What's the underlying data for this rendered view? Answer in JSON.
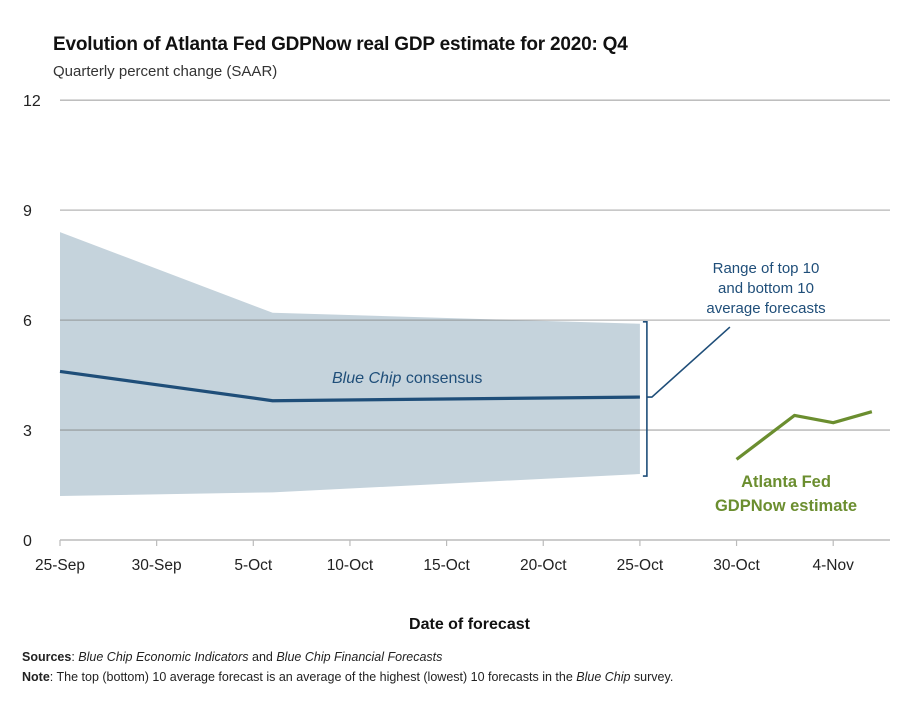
{
  "chart_data": {
    "type": "line",
    "title": "Evolution of Atlanta Fed GDPNow real GDP estimate for 2020: Q4",
    "subtitle": "Quarterly percent change (SAAR)",
    "xlabel": "Date of forecast",
    "ylabel": "",
    "ylim": [
      0,
      12
    ],
    "yticks": [
      0,
      3,
      6,
      9,
      12
    ],
    "ytick_labels": [
      "0",
      "3",
      "6",
      "9",
      "12"
    ],
    "xlim_days": [
      0,
      43
    ],
    "x_origin": "25-Sep",
    "xticks_days": [
      0,
      5,
      10,
      15,
      20,
      25,
      30,
      35,
      40
    ],
    "xtick_labels": [
      "25-Sep",
      "30-Sep",
      "5-Oct",
      "10-Oct",
      "15-Oct",
      "20-Oct",
      "25-Oct",
      "30-Oct",
      "4-Nov"
    ],
    "grid": true,
    "series": [
      {
        "name": "Blue Chip consensus",
        "type": "line",
        "color": "#1f4e79",
        "x_days": [
          0,
          11,
          30
        ],
        "x_labels": [
          "25-Sep",
          "6-Oct",
          "25-Oct"
        ],
        "values": [
          4.6,
          3.8,
          3.9
        ]
      },
      {
        "name": "Range of top 10 and bottom 10 average forecasts",
        "type": "band",
        "color": "#c5d3dc",
        "x_days": [
          0,
          11,
          30
        ],
        "x_labels": [
          "25-Sep",
          "6-Oct",
          "25-Oct"
        ],
        "upper": [
          8.4,
          6.2,
          5.9
        ],
        "lower": [
          1.2,
          1.3,
          1.8
        ]
      },
      {
        "name": "Atlanta Fed GDPNow estimate",
        "type": "line",
        "color": "#6b8e2f",
        "x_days": [
          35,
          38,
          40,
          42
        ],
        "x_labels": [
          "30-Oct",
          "2-Nov",
          "4-Nov",
          "6-Nov"
        ],
        "values": [
          2.2,
          3.4,
          3.2,
          3.5
        ]
      }
    ],
    "annotations": {
      "consensus_label_italic": "Blue Chip",
      "consensus_label_rest": " consensus",
      "range_label_lines": [
        "Range of top 10",
        "and bottom 10",
        "average forecasts"
      ],
      "gdpnow_label_lines": [
        "Atlanta Fed",
        "GDPNow estimate"
      ]
    }
  },
  "footer": {
    "sources_label": "Sources",
    "sources_sep": ": ",
    "sources_part1": "Blue Chip Economic Indicators",
    "sources_and": " and ",
    "sources_part2": "Blue Chip Financial Forecasts",
    "note_label": "Note",
    "note_sep": ": ",
    "note_text_before": "The top (bottom) 10 average forecast is an average of the highest (lowest) 10 forecasts in the ",
    "note_italic": "Blue Chip",
    "note_text_after": " survey."
  }
}
